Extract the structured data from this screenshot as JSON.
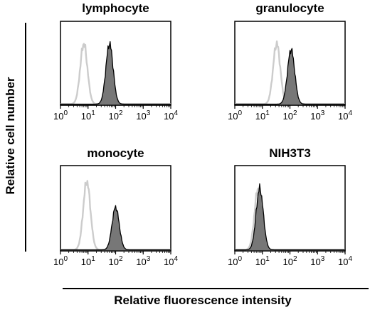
{
  "figure": {
    "y_axis_label": "Relative cell number",
    "x_axis_label": "Relative fluorescence intensity"
  },
  "chart_data": [
    {
      "type": "area",
      "title": "lymphocyte",
      "x_scale": "log",
      "xlim": [
        1,
        10000
      ],
      "x_ticks": [
        1,
        10,
        100,
        1000,
        10000
      ],
      "x_tick_labels": [
        "10^0",
        "10^1",
        "10^2",
        "10^3",
        "10^4"
      ],
      "series": [
        {
          "style": "outline",
          "color": "#cccccc",
          "peak_x": 7,
          "relative_height": 0.72
        },
        {
          "style": "filled",
          "color": "#777777",
          "peak_x": 60,
          "relative_height": 0.72
        }
      ]
    },
    {
      "type": "area",
      "title": "granulocyte",
      "x_scale": "log",
      "xlim": [
        1,
        10000
      ],
      "x_ticks": [
        1,
        10,
        100,
        1000,
        10000
      ],
      "x_tick_labels": [
        "10^0",
        "10^1",
        "10^2",
        "10^3",
        "10^4"
      ],
      "series": [
        {
          "style": "outline",
          "color": "#cccccc",
          "peak_x": 33,
          "relative_height": 0.72
        },
        {
          "style": "filled",
          "color": "#777777",
          "peak_x": 110,
          "relative_height": 0.65
        }
      ]
    },
    {
      "type": "area",
      "title": "monocyte",
      "x_scale": "log",
      "xlim": [
        1,
        10000
      ],
      "x_ticks": [
        1,
        10,
        100,
        1000,
        10000
      ],
      "x_tick_labels": [
        "10^0",
        "10^1",
        "10^2",
        "10^3",
        "10^4"
      ],
      "series": [
        {
          "style": "outline",
          "color": "#cccccc",
          "peak_x": 9,
          "relative_height": 0.8
        },
        {
          "style": "filled",
          "color": "#777777",
          "peak_x": 100,
          "relative_height": 0.5
        }
      ]
    },
    {
      "type": "area",
      "title": "NIH3T3",
      "x_scale": "log",
      "xlim": [
        1,
        10000
      ],
      "x_ticks": [
        1,
        10,
        100,
        1000,
        10000
      ],
      "x_tick_labels": [
        "10^0",
        "10^1",
        "10^2",
        "10^3",
        "10^4"
      ],
      "series": [
        {
          "style": "outline",
          "color": "#cccccc",
          "peak_x": 7,
          "relative_height": 0.72
        },
        {
          "style": "filled",
          "color": "#777777",
          "peak_x": 8,
          "relative_height": 0.72
        }
      ]
    }
  ]
}
